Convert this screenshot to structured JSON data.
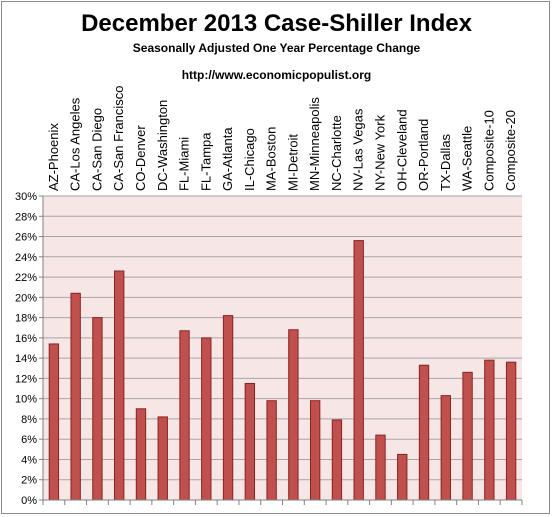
{
  "chart_data": {
    "type": "bar",
    "title": "December 2013 Case-Shiller Index",
    "subtitle": "Seasonally Adjusted One Year Percentage Change",
    "source_url": "http://www.economicpopulist.org",
    "categories": [
      "AZ-Phoenix",
      "CA-Los Angeles",
      "CA-San Diego",
      "CA-San Francisco",
      "CO-Denver",
      "DC-Washington",
      "FL-Miami",
      "FL-Tampa",
      "GA-Atlanta",
      "IL-Chicago",
      "MA-Boston",
      "MI-Detroit",
      "MN-Minneapolis",
      "NC-Charlotte",
      "NV-Las Vegas",
      "NY-New York",
      "OH-Cleveland",
      "OR-Portland",
      "TX-Dallas",
      "WA-Seattle",
      "Composite-10",
      "Composite-20"
    ],
    "values": [
      0.154,
      0.204,
      0.18,
      0.226,
      0.09,
      0.082,
      0.167,
      0.16,
      0.182,
      0.115,
      0.098,
      0.168,
      0.098,
      0.079,
      0.256,
      0.064,
      0.045,
      0.133,
      0.103,
      0.126,
      0.138,
      0.136
    ],
    "ylim": [
      0,
      0.3
    ],
    "yticks": [
      "0%",
      "2%",
      "4%",
      "6%",
      "8%",
      "10%",
      "12%",
      "14%",
      "16%",
      "18%",
      "20%",
      "22%",
      "24%",
      "26%",
      "28%",
      "30%"
    ],
    "grid": true,
    "colors": {
      "bar": "#c0504d",
      "bar_edge": "#8b2320",
      "plot_bg": "#f7e6e6",
      "grid": "#a6a6a6"
    }
  }
}
